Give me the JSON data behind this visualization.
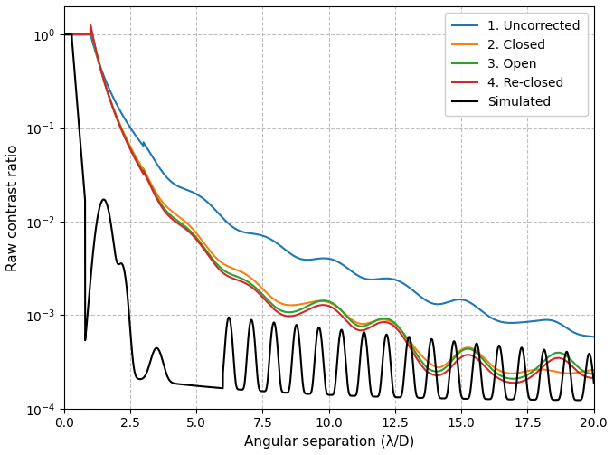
{
  "xlabel": "Angular separation (λ/D)",
  "ylabel": "Raw contrast ratio",
  "xlim": [
    0.0,
    20.0
  ],
  "ylim": [
    0.0001,
    2.0
  ],
  "xticks": [
    0.0,
    2.5,
    5.0,
    7.5,
    10.0,
    12.5,
    15.0,
    17.5,
    20.0
  ],
  "legend_entries": [
    "1. Uncorrected",
    "2. Closed",
    "3. Open",
    "4. Re-closed",
    "Simulated"
  ],
  "line_colors": [
    "#1f77b4",
    "#ff7f0e",
    "#2ca02c",
    "#d62728",
    "#000000"
  ],
  "line_widths": [
    1.5,
    1.5,
    1.5,
    1.5,
    1.5
  ],
  "grid_color": "#b0b0b0",
  "grid_linestyle": "--",
  "background_color": "#ffffff"
}
